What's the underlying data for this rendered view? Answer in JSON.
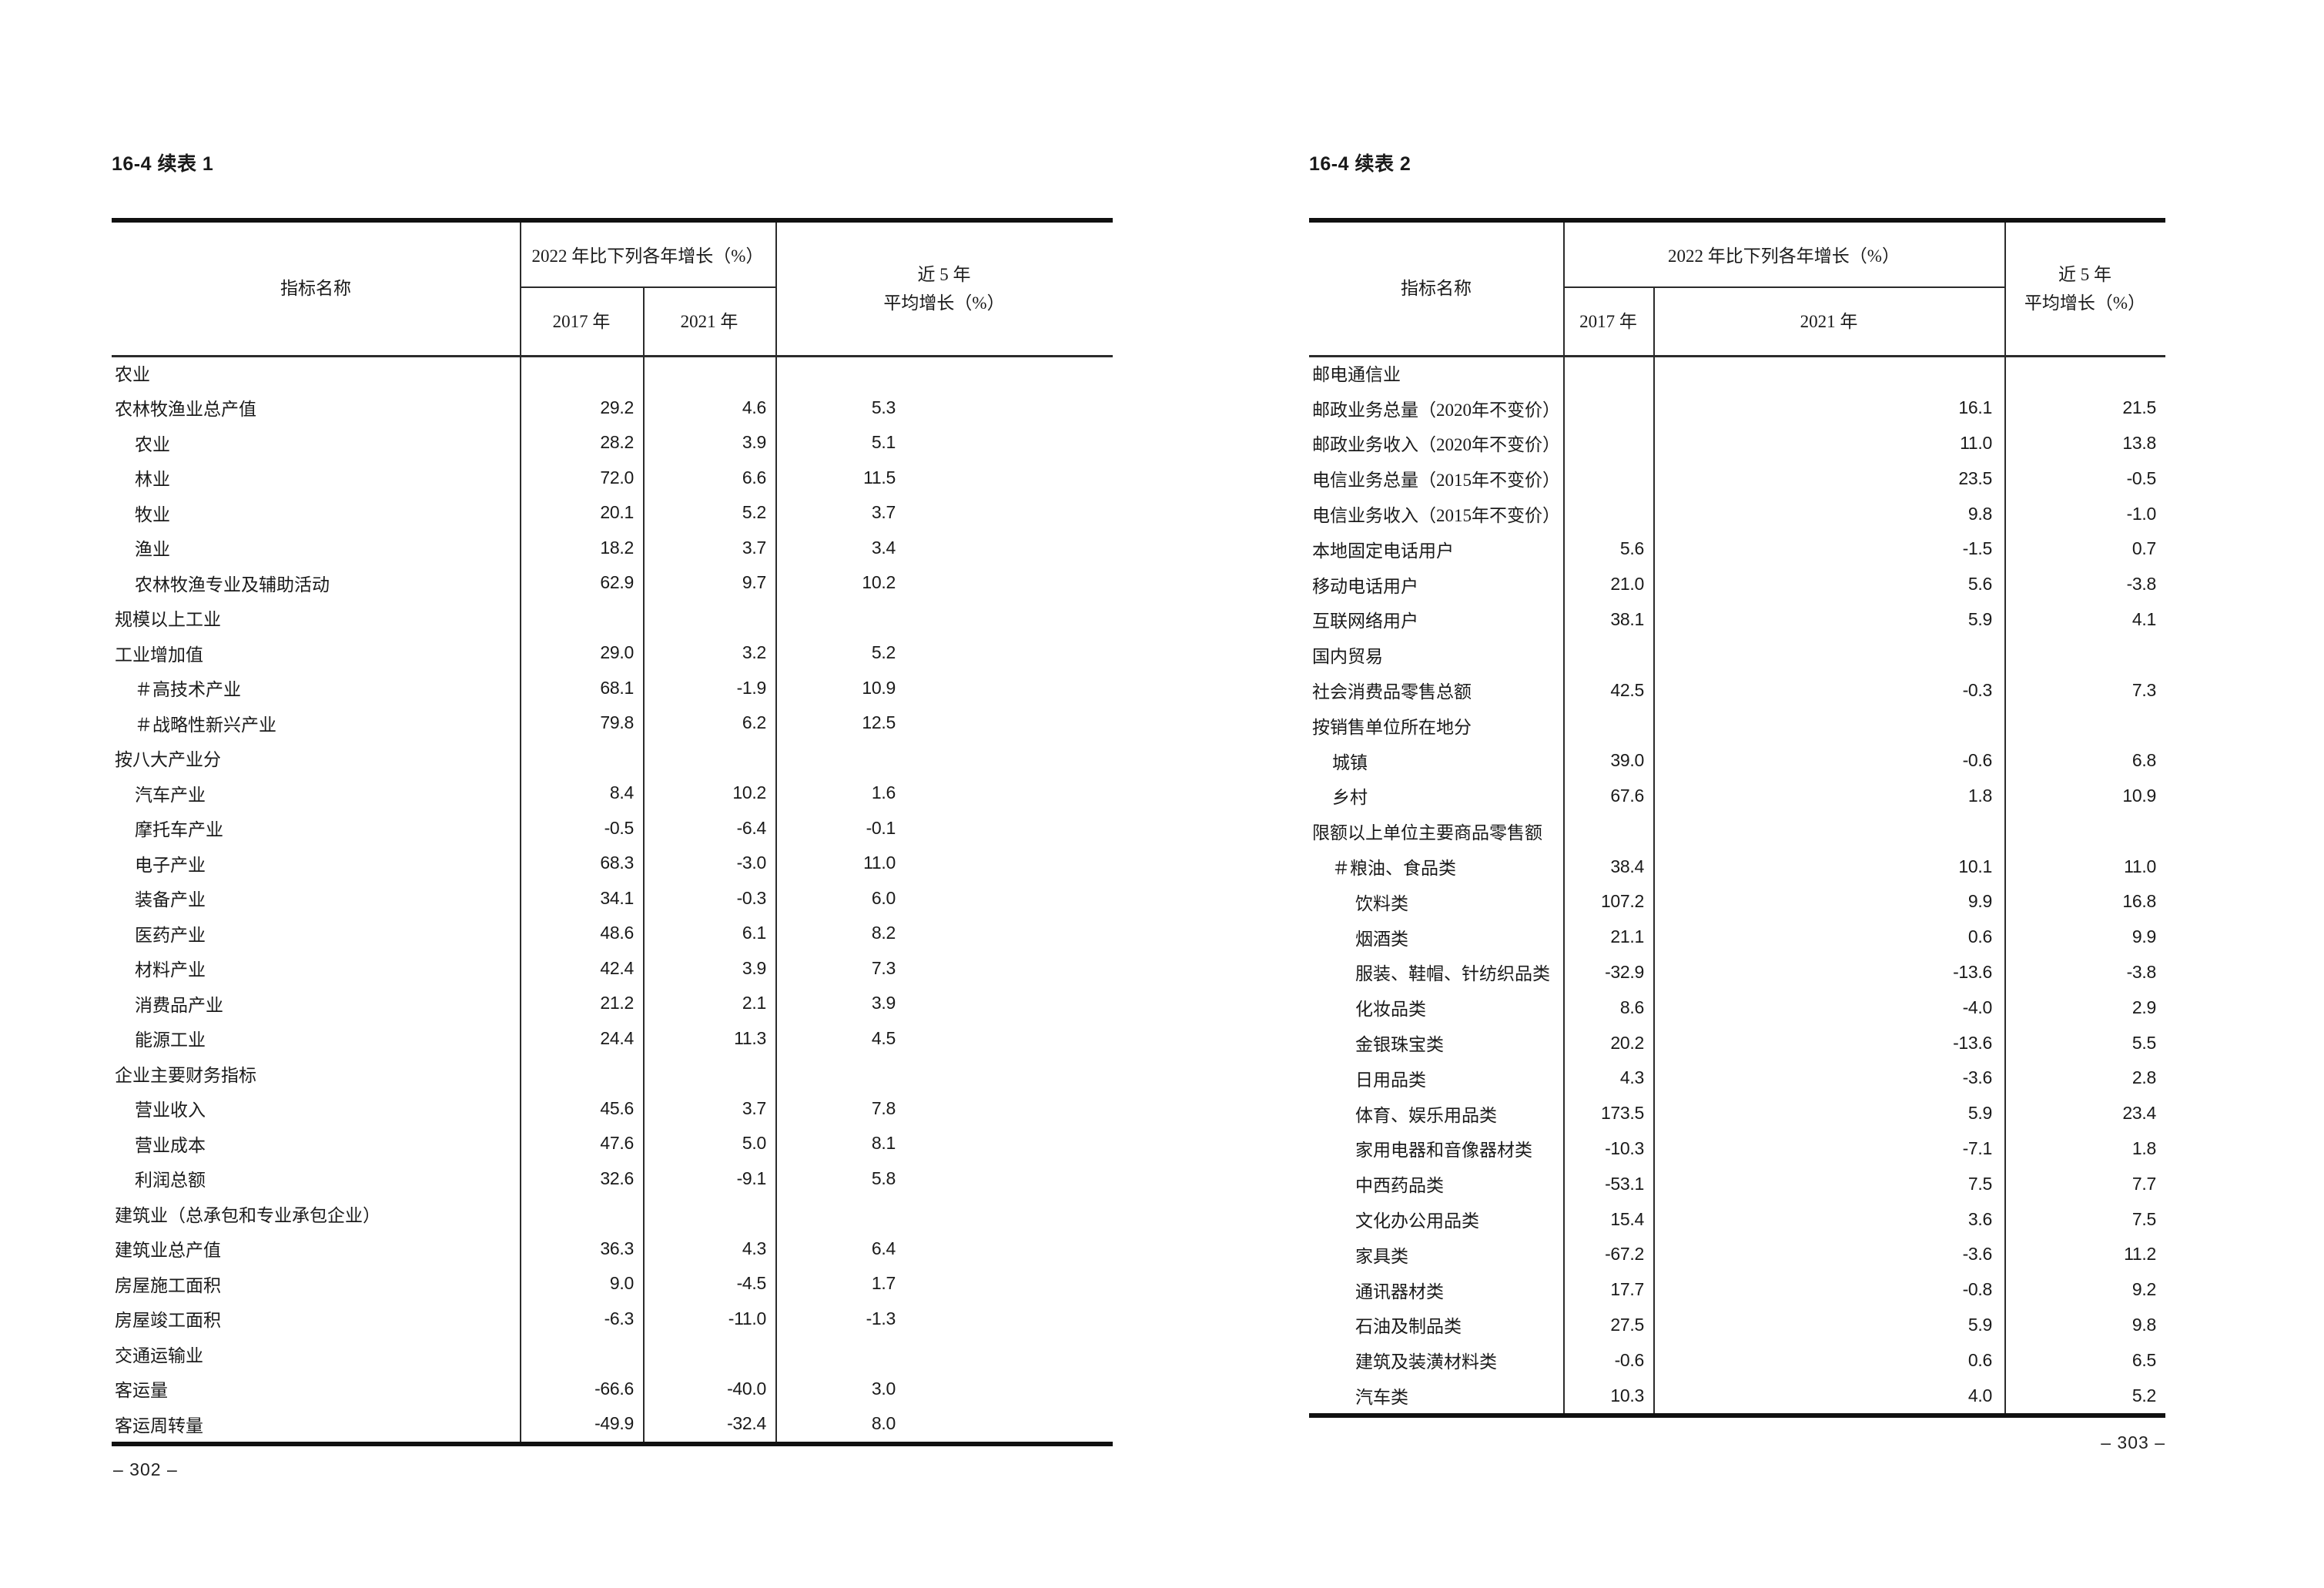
{
  "document": {
    "background": "#ffffff",
    "text_color": "#1a1a1a",
    "line_color": "#2b2b2b"
  },
  "left_page": {
    "caption": "16-4 续表 1",
    "page_number": "– 302 –",
    "header": {
      "name_col": "指标名称",
      "growth_group": "2022 年比下列各年增长（%）",
      "col_2017": "2017 年",
      "col_2021": "2021 年",
      "avg5_line1": "近 5 年",
      "avg5_line2": "平均增长（%）"
    },
    "rows": [
      {
        "label": "农业",
        "indent": 0,
        "v2017": "",
        "v2021": "",
        "avg5": ""
      },
      {
        "label": "农林牧渔业总产值",
        "indent": 0,
        "v2017": "29.2",
        "v2021": "4.6",
        "avg5": "5.3"
      },
      {
        "label": "农业",
        "indent": 1,
        "v2017": "28.2",
        "v2021": "3.9",
        "avg5": "5.1"
      },
      {
        "label": "林业",
        "indent": 1,
        "v2017": "72.0",
        "v2021": "6.6",
        "avg5": "11.5"
      },
      {
        "label": "牧业",
        "indent": 1,
        "v2017": "20.1",
        "v2021": "5.2",
        "avg5": "3.7"
      },
      {
        "label": "渔业",
        "indent": 1,
        "v2017": "18.2",
        "v2021": "3.7",
        "avg5": "3.4"
      },
      {
        "label": "农林牧渔专业及辅助活动",
        "indent": 1,
        "v2017": "62.9",
        "v2021": "9.7",
        "avg5": "10.2"
      },
      {
        "label": "规模以上工业",
        "indent": 0,
        "v2017": "",
        "v2021": "",
        "avg5": ""
      },
      {
        "label": "工业增加值",
        "indent": 0,
        "v2017": "29.0",
        "v2021": "3.2",
        "avg5": "5.2"
      },
      {
        "label": "＃高技术产业",
        "indent": 1,
        "v2017": "68.1",
        "v2021": "-1.9",
        "avg5": "10.9"
      },
      {
        "label": "＃战略性新兴产业",
        "indent": 1,
        "v2017": "79.8",
        "v2021": "6.2",
        "avg5": "12.5"
      },
      {
        "label": "按八大产业分",
        "indent": 0,
        "v2017": "",
        "v2021": "",
        "avg5": ""
      },
      {
        "label": "汽车产业",
        "indent": 1,
        "v2017": "8.4",
        "v2021": "10.2",
        "avg5": "1.6"
      },
      {
        "label": "摩托车产业",
        "indent": 1,
        "v2017": "-0.5",
        "v2021": "-6.4",
        "avg5": "-0.1"
      },
      {
        "label": "电子产业",
        "indent": 1,
        "v2017": "68.3",
        "v2021": "-3.0",
        "avg5": "11.0"
      },
      {
        "label": "装备产业",
        "indent": 1,
        "v2017": "34.1",
        "v2021": "-0.3",
        "avg5": "6.0"
      },
      {
        "label": "医药产业",
        "indent": 1,
        "v2017": "48.6",
        "v2021": "6.1",
        "avg5": "8.2"
      },
      {
        "label": "材料产业",
        "indent": 1,
        "v2017": "42.4",
        "v2021": "3.9",
        "avg5": "7.3"
      },
      {
        "label": "消费品产业",
        "indent": 1,
        "v2017": "21.2",
        "v2021": "2.1",
        "avg5": "3.9"
      },
      {
        "label": "能源工业",
        "indent": 1,
        "v2017": "24.4",
        "v2021": "11.3",
        "avg5": "4.5"
      },
      {
        "label": "企业主要财务指标",
        "indent": 0,
        "v2017": "",
        "v2021": "",
        "avg5": ""
      },
      {
        "label": "营业收入",
        "indent": 1,
        "v2017": "45.6",
        "v2021": "3.7",
        "avg5": "7.8"
      },
      {
        "label": "营业成本",
        "indent": 1,
        "v2017": "47.6",
        "v2021": "5.0",
        "avg5": "8.1"
      },
      {
        "label": "利润总额",
        "indent": 1,
        "v2017": "32.6",
        "v2021": "-9.1",
        "avg5": "5.8"
      },
      {
        "label": "建筑业（总承包和专业承包企业）",
        "indent": 0,
        "v2017": "",
        "v2021": "",
        "avg5": ""
      },
      {
        "label": "建筑业总产值",
        "indent": 0,
        "v2017": "36.3",
        "v2021": "4.3",
        "avg5": "6.4"
      },
      {
        "label": "房屋施工面积",
        "indent": 0,
        "v2017": "9.0",
        "v2021": "-4.5",
        "avg5": "1.7"
      },
      {
        "label": "房屋竣工面积",
        "indent": 0,
        "v2017": "-6.3",
        "v2021": "-11.0",
        "avg5": "-1.3"
      },
      {
        "label": "交通运输业",
        "indent": 0,
        "v2017": "",
        "v2021": "",
        "avg5": ""
      },
      {
        "label": "客运量",
        "indent": 0,
        "v2017": "-66.6",
        "v2021": "-40.0",
        "avg5": "3.0"
      },
      {
        "label": "客运周转量",
        "indent": 0,
        "v2017": "-49.9",
        "v2021": "-32.4",
        "avg5": "8.0"
      }
    ]
  },
  "right_page": {
    "caption": "16-4 续表 2",
    "page_number": "– 303 –",
    "header": {
      "name_col": "指标名称",
      "growth_group": "2022 年比下列各年增长（%）",
      "col_2017": "2017 年",
      "col_2021": "2021 年",
      "avg5_line1": "近 5 年",
      "avg5_line2": "平均增长（%）"
    },
    "rows": [
      {
        "label": "邮电通信业",
        "indent": 0,
        "v2017": "",
        "v2021": "",
        "avg5": ""
      },
      {
        "label": "邮政业务总量（2020年不变价）",
        "indent": 0,
        "v2017": "",
        "v2021": "16.1",
        "avg5": "21.5"
      },
      {
        "label": "邮政业务收入（2020年不变价）",
        "indent": 0,
        "v2017": "",
        "v2021": "11.0",
        "avg5": "13.8"
      },
      {
        "label": "电信业务总量（2015年不变价）",
        "indent": 0,
        "v2017": "",
        "v2021": "23.5",
        "avg5": "-0.5"
      },
      {
        "label": "电信业务收入（2015年不变价）",
        "indent": 0,
        "v2017": "",
        "v2021": "9.8",
        "avg5": "-1.0"
      },
      {
        "label": "本地固定电话用户",
        "indent": 0,
        "v2017": "5.6",
        "v2021": "-1.5",
        "avg5": "0.7"
      },
      {
        "label": "移动电话用户",
        "indent": 0,
        "v2017": "21.0",
        "v2021": "5.6",
        "avg5": "-3.8"
      },
      {
        "label": "互联网络用户",
        "indent": 0,
        "v2017": "38.1",
        "v2021": "5.9",
        "avg5": "4.1"
      },
      {
        "label": "国内贸易",
        "indent": 0,
        "v2017": "",
        "v2021": "",
        "avg5": ""
      },
      {
        "label": "社会消费品零售总额",
        "indent": 0,
        "v2017": "42.5",
        "v2021": "-0.3",
        "avg5": "7.3"
      },
      {
        "label": "按销售单位所在地分",
        "indent": 0,
        "v2017": "",
        "v2021": "",
        "avg5": ""
      },
      {
        "label": "城镇",
        "indent": 1,
        "v2017": "39.0",
        "v2021": "-0.6",
        "avg5": "6.8"
      },
      {
        "label": "乡村",
        "indent": 1,
        "v2017": "67.6",
        "v2021": "1.8",
        "avg5": "10.9"
      },
      {
        "label": "限额以上单位主要商品零售额",
        "indent": 0,
        "v2017": "",
        "v2021": "",
        "avg5": ""
      },
      {
        "label": "＃粮油、食品类",
        "indent": 1,
        "v2017": "38.4",
        "v2021": "10.1",
        "avg5": "11.0"
      },
      {
        "label": "饮料类",
        "indent": 2,
        "v2017": "107.2",
        "v2021": "9.9",
        "avg5": "16.8"
      },
      {
        "label": "烟酒类",
        "indent": 2,
        "v2017": "21.1",
        "v2021": "0.6",
        "avg5": "9.9"
      },
      {
        "label": "服装、鞋帽、针纺织品类",
        "indent": 2,
        "v2017": "-32.9",
        "v2021": "-13.6",
        "avg5": "-3.8"
      },
      {
        "label": "化妆品类",
        "indent": 2,
        "v2017": "8.6",
        "v2021": "-4.0",
        "avg5": "2.9"
      },
      {
        "label": "金银珠宝类",
        "indent": 2,
        "v2017": "20.2",
        "v2021": "-13.6",
        "avg5": "5.5"
      },
      {
        "label": "日用品类",
        "indent": 2,
        "v2017": "4.3",
        "v2021": "-3.6",
        "avg5": "2.8"
      },
      {
        "label": "体育、娱乐用品类",
        "indent": 2,
        "v2017": "173.5",
        "v2021": "5.9",
        "avg5": "23.4"
      },
      {
        "label": "家用电器和音像器材类",
        "indent": 2,
        "v2017": "-10.3",
        "v2021": "-7.1",
        "avg5": "1.8"
      },
      {
        "label": "中西药品类",
        "indent": 2,
        "v2017": "-53.1",
        "v2021": "7.5",
        "avg5": "7.7"
      },
      {
        "label": "文化办公用品类",
        "indent": 2,
        "v2017": "15.4",
        "v2021": "3.6",
        "avg5": "7.5"
      },
      {
        "label": "家具类",
        "indent": 2,
        "v2017": "-67.2",
        "v2021": "-3.6",
        "avg5": "11.2"
      },
      {
        "label": "通讯器材类",
        "indent": 2,
        "v2017": "17.7",
        "v2021": "-0.8",
        "avg5": "9.2"
      },
      {
        "label": "石油及制品类",
        "indent": 2,
        "v2017": "27.5",
        "v2021": "5.9",
        "avg5": "9.8"
      },
      {
        "label": "建筑及装潢材料类",
        "indent": 2,
        "v2017": "-0.6",
        "v2021": "0.6",
        "avg5": "6.5"
      },
      {
        "label": "汽车类",
        "indent": 2,
        "v2017": "10.3",
        "v2021": "4.0",
        "avg5": "5.2"
      }
    ]
  }
}
